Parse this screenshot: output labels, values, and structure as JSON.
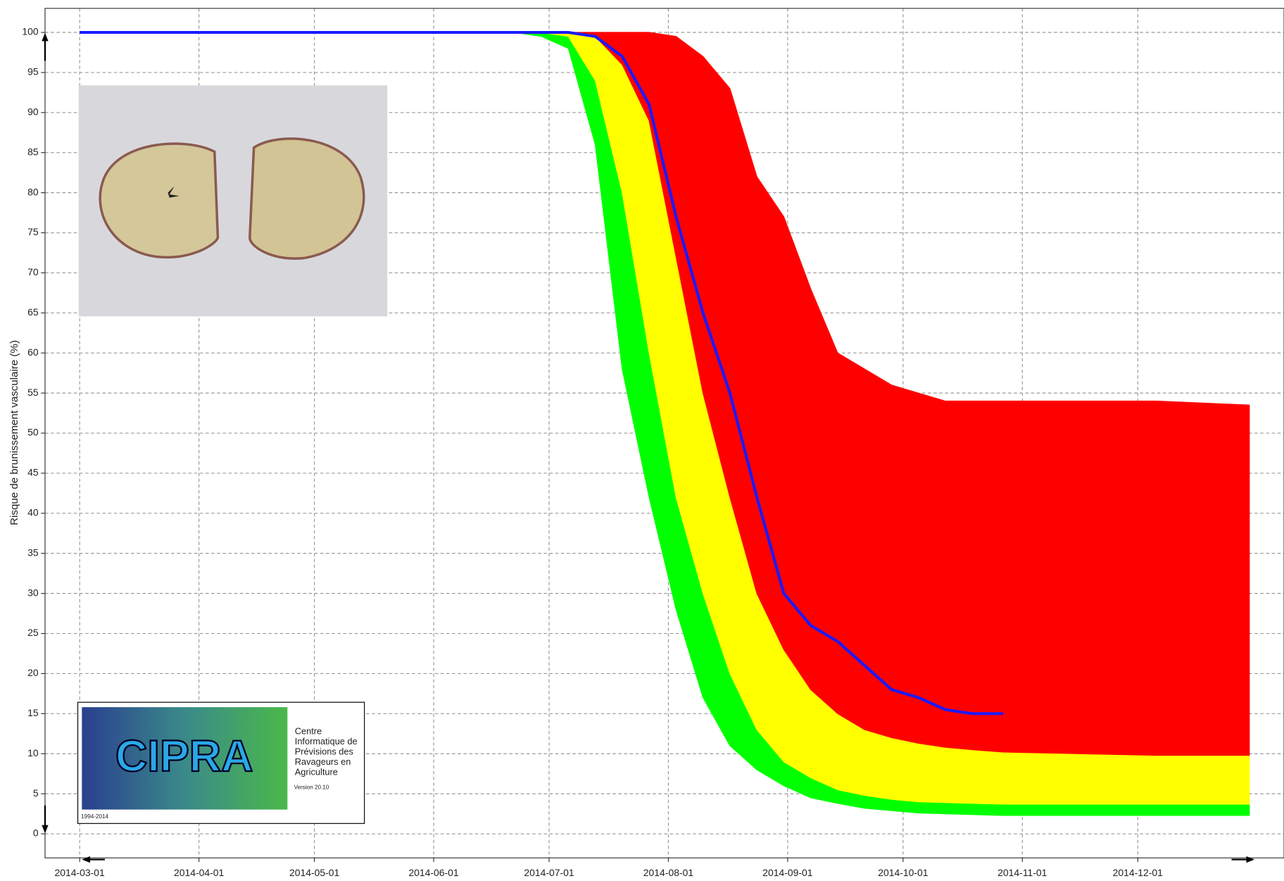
{
  "chart_data": {
    "type": "band",
    "y_label": "Risque de brunissement vasculaire (%)",
    "x": [
      "2014-03-01",
      "2014-06-22",
      "2014-06-29",
      "2014-07-06",
      "2014-07-13",
      "2014-07-20",
      "2014-07-27",
      "2014-08-03",
      "2014-08-10",
      "2014-08-17",
      "2014-08-24",
      "2014-08-31",
      "2014-09-07",
      "2014-09-14",
      "2014-09-21",
      "2014-09-28",
      "2014-10-05",
      "2014-10-12",
      "2014-10-19",
      "2014-10-27",
      "2014-11-16",
      "2014-12-06",
      "2014-12-30"
    ],
    "bands": [
      {
        "color": "#00ff00",
        "lower": [
          100,
          100,
          99.5,
          98,
          86,
          58,
          42,
          28,
          17,
          11,
          8,
          6,
          4.5,
          3.8,
          3.2,
          2.9,
          2.6,
          2.5,
          2.4,
          2.3,
          2.3,
          2.3,
          2.3
        ],
        "upper": [
          100,
          100,
          100,
          99.5,
          94,
          80,
          60,
          42,
          30,
          20,
          13,
          9,
          7,
          5.5,
          4.8,
          4.3,
          4,
          3.9,
          3.8,
          3.7,
          3.7,
          3.7,
          3.7
        ]
      },
      {
        "color": "#ffff00",
        "lower": [
          100,
          100,
          100,
          99.5,
          94,
          80,
          60,
          42,
          30,
          20,
          13,
          9,
          7,
          5.5,
          4.8,
          4.3,
          4,
          3.9,
          3.8,
          3.7,
          3.7,
          3.7,
          3.7
        ],
        "upper": [
          100,
          100,
          100,
          100,
          99.5,
          96,
          89,
          72,
          55,
          42,
          30,
          23,
          18,
          15,
          13,
          12,
          11.3,
          10.8,
          10.5,
          10.2,
          10,
          9.8,
          9.8
        ]
      },
      {
        "color": "#ff0000",
        "lower": [
          100,
          100,
          100,
          100,
          99.5,
          96,
          89,
          72,
          55,
          42,
          30,
          23,
          18,
          15,
          13,
          12,
          11.3,
          10.8,
          10.5,
          10.2,
          10,
          9.8,
          9.8
        ],
        "upper": [
          100,
          100,
          100,
          100,
          100,
          100,
          100,
          99.5,
          97,
          93,
          82,
          77,
          68,
          60,
          58,
          56,
          55,
          54,
          54,
          54,
          54,
          54,
          53.5
        ]
      }
    ],
    "series": [
      {
        "color": "#1a1aff",
        "values": [
          100,
          100,
          100,
          100,
          99.5,
          97,
          91,
          77,
          65,
          55,
          42,
          30,
          26,
          24,
          21,
          18,
          17,
          15.5,
          15,
          15,
          null,
          null,
          null
        ]
      }
    ],
    "xlim": [
      "2014-02-20",
      "2015-01-08"
    ],
    "xticks": [
      "2014-03-01",
      "2014-04-01",
      "2014-05-01",
      "2014-06-01",
      "2014-07-01",
      "2014-08-01",
      "2014-09-01",
      "2014-10-01",
      "2014-11-01",
      "2014-12-01"
    ],
    "ylim": [
      -3,
      103
    ],
    "yticks": [
      0,
      5,
      10,
      15,
      20,
      25,
      30,
      35,
      40,
      45,
      50,
      55,
      60,
      65,
      70,
      75,
      80,
      85,
      90,
      95,
      100
    ],
    "grid": true
  },
  "logo": {
    "name": "CIPRA",
    "text": [
      "Centre",
      "Informatique de",
      "Prévisions des",
      "Ravageurs en",
      "Agriculture"
    ],
    "version": "Version 20.10",
    "years": "1994-2014"
  }
}
